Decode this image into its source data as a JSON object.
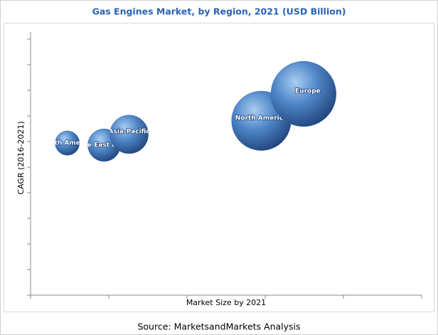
{
  "chart_data": {
    "type": "bubble",
    "title": "Gas Engines Market, by Region, 2021 (USD Billion)",
    "xlabel": "Market Size by 2021",
    "ylabel": "CAGR (2016-2021)",
    "source": "Source: MarketsandMarkets Analysis",
    "labels": [
      "South America",
      "Middle East & Africa",
      "Asia-Pacific",
      "North America",
      "Europe"
    ],
    "x": [
      0.47,
      0.94,
      1.26,
      2.95,
      3.49
    ],
    "y": [
      5.94,
      5.86,
      6.28,
      6.81,
      7.86
    ],
    "sizes": [
      1.4,
      2.5,
      3.5,
      8.3,
      10
    ],
    "color": "#3a6fb5",
    "xlim": [
      0,
      5
    ],
    "ylim": [
      0,
      10
    ],
    "xticks": [
      0,
      1,
      2,
      3,
      4,
      5
    ],
    "yticks": [
      0,
      1,
      2,
      3,
      4,
      5,
      6,
      7,
      8,
      9,
      10
    ]
  }
}
